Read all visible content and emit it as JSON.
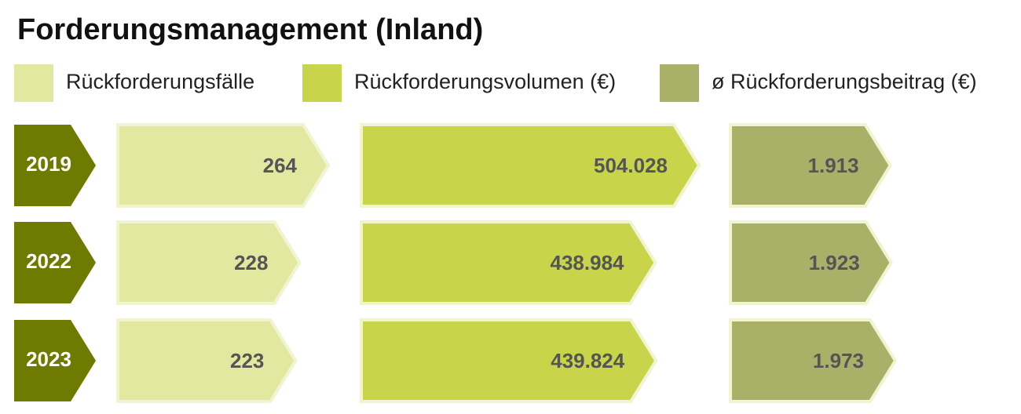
{
  "chart_data": {
    "type": "bar",
    "orientation": "horizontal",
    "title": "Forderungsmanagement (Inland)",
    "categories": [
      "2019",
      "2022",
      "2023"
    ],
    "category_color": "#6e7a00",
    "series": [
      {
        "name": "Rückforderungsfälle",
        "color": "#e3e8a0",
        "values": [
          264,
          228,
          223
        ]
      },
      {
        "name": "Rückforderungsvolumen (€)",
        "color": "#c8d44a",
        "values": [
          504028,
          438984,
          439824
        ],
        "value_labels": [
          "504.028",
          "438.984",
          "439.824"
        ]
      },
      {
        "name": "ø Rückforderungsbeitrag (€)",
        "color": "#a9b169",
        "values": [
          1913,
          1923,
          1973
        ],
        "value_labels": [
          "1.913",
          "1.923",
          "1.973"
        ]
      }
    ]
  }
}
